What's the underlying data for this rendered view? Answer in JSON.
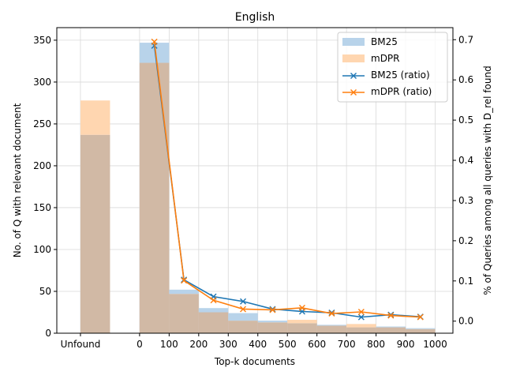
{
  "chart_data": {
    "type": "bar",
    "title": "English",
    "xlabel": "Top-k documents",
    "ylabel": "No. of Q with relevant document",
    "y2label": "% of Queries among all queries with D_rel found",
    "x_tick_labels": [
      "Unfound",
      "0",
      "100",
      "200",
      "300",
      "400",
      "500",
      "600",
      "700",
      "800",
      "900",
      "1000"
    ],
    "y_ticks": [
      "0",
      "50",
      "100",
      "150",
      "200",
      "250",
      "300",
      "350"
    ],
    "y2_ticks": [
      "0.0",
      "0.1",
      "0.2",
      "0.3",
      "0.4",
      "0.5",
      "0.6",
      "0.7"
    ],
    "ylim": [
      0,
      365
    ],
    "y2lim": [
      -0.03,
      0.73
    ],
    "grid": true,
    "legend_position": "top-right",
    "legend": [
      "BM25",
      "mDPR",
      "BM25 (ratio)",
      "mDPR (ratio)"
    ],
    "colors": {
      "bm25": "#1f77b4",
      "mdpr": "#ff7f0e",
      "overlap": "#d1b9a5"
    },
    "bins": [
      "Unfound",
      "0-100",
      "100-200",
      "200-300",
      "300-400",
      "400-500",
      "500-600",
      "600-700",
      "700-800",
      "800-900",
      "900-1000"
    ],
    "series": [
      {
        "name": "BM25",
        "kind": "bar",
        "values": [
          237,
          347,
          52,
          30,
          24,
          15,
          12,
          10,
          7,
          8,
          6
        ]
      },
      {
        "name": "mDPR",
        "kind": "bar",
        "values": [
          278,
          323,
          47,
          25,
          15,
          13,
          16,
          9,
          11,
          7,
          5
        ]
      }
    ],
    "ratio_x": [
      50,
      150,
      250,
      350,
      450,
      550,
      650,
      750,
      850,
      950
    ],
    "ratio_series": [
      {
        "name": "BM25 (ratio)",
        "kind": "line",
        "values": [
          0.685,
          0.103,
          0.061,
          0.049,
          0.03,
          0.024,
          0.021,
          0.01,
          0.016,
          0.011
        ]
      },
      {
        "name": "mDPR (ratio)",
        "kind": "line",
        "values": [
          0.695,
          0.101,
          0.052,
          0.03,
          0.028,
          0.033,
          0.019,
          0.023,
          0.014,
          0.01
        ]
      }
    ]
  }
}
